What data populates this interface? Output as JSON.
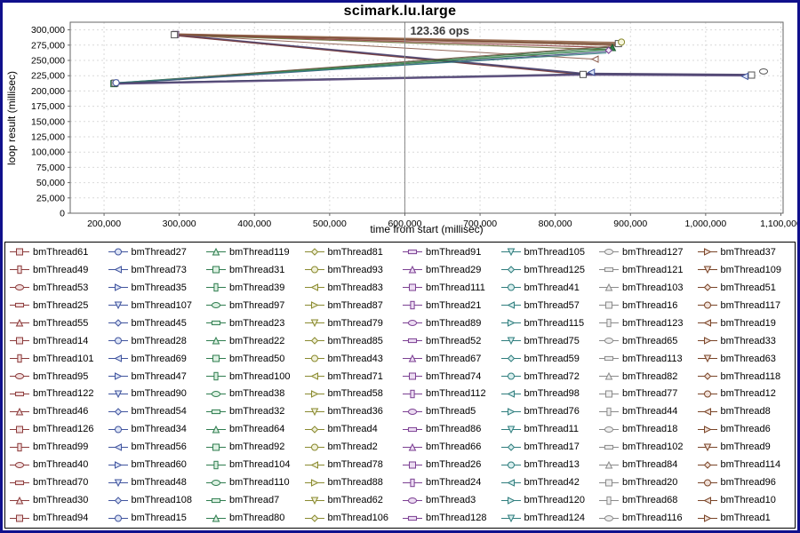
{
  "page": {
    "frame_color": "#10108c",
    "legend_border_color": "#000000",
    "background": "#ffffff"
  },
  "chart_data": {
    "type": "line",
    "title": "scimark.lu.large",
    "xlabel": "time from start (millisec)",
    "ylabel": "loop result (millisec)",
    "xlim": [
      155000,
      1103000
    ],
    "ylim": [
      0,
      312500
    ],
    "x_ticks": [
      200000,
      300000,
      400000,
      500000,
      600000,
      700000,
      800000,
      900000,
      1000000,
      1100000
    ],
    "x_tick_labels": [
      "200,000",
      "300,000",
      "400,000",
      "500,000",
      "600,000",
      "700,000",
      "800,000",
      "900,000",
      "1,000,000",
      "1,100,000"
    ],
    "y_ticks": [
      0,
      25000,
      50000,
      75000,
      100000,
      125000,
      150000,
      175000,
      200000,
      225000,
      250000,
      275000,
      300000
    ],
    "y_tick_labels": [
      "0",
      "25,000",
      "50,000",
      "75,000",
      "100,000",
      "125,000",
      "150,000",
      "175,000",
      "200,000",
      "225,000",
      "250,000",
      "275,000",
      "300,000"
    ],
    "grid": true,
    "legend_position": "bottom",
    "annotation": {
      "text": "123.36 ops",
      "x_value": 600000
    },
    "note": "128 overlapping series (bmThread1..bmThread128). Lines bundle between start clusters and end clusters; values below are representative cluster coordinates read from the plot.",
    "clusters": {
      "start_low": {
        "x": 213000,
        "y": 212000
      },
      "start_high": {
        "x": 295000,
        "y": 292000
      },
      "end_high": {
        "x": 878000,
        "y": 271000
      },
      "mid_low": {
        "x": 838000,
        "y": 227000
      },
      "end_far": {
        "x": 1062000,
        "y": 226000
      },
      "outlier": {
        "x": 853000,
        "y": 252000
      }
    },
    "series": [
      {
        "name": "bundle start_high to end_high",
        "color": "#7a5230",
        "w": 1.4,
        "points": [
          [
            295000,
            293000
          ],
          [
            884000,
            277500
          ]
        ]
      },
      {
        "name": "bundle start_high to end_high",
        "color": "#8a5a3a",
        "w": 1.2,
        "points": [
          [
            295000,
            292500
          ],
          [
            880000,
            274500
          ]
        ]
      },
      {
        "name": "bundle start_high to end_high",
        "color": "#8b3a3a",
        "w": 1.2,
        "points": [
          [
            294000,
            292000
          ],
          [
            876000,
            271000
          ]
        ]
      },
      {
        "name": "bundle start_high to end_high",
        "color": "#9a6a50",
        "w": 1.2,
        "points": [
          [
            296000,
            293500
          ],
          [
            887000,
            279500
          ]
        ]
      },
      {
        "name": "bundle start_high to end_high",
        "color": "#6b6b35",
        "w": 1.2,
        "points": [
          [
            295000,
            291500
          ],
          [
            872000,
            267500
          ]
        ]
      },
      {
        "name": "bundle start_high to end_high",
        "color": "#7a4a3a",
        "w": 1.0,
        "points": [
          [
            294500,
            292800
          ],
          [
            882000,
            276000
          ]
        ]
      },
      {
        "name": "bundle start_high to mid_low to end_far",
        "color": "#50406e",
        "w": 1.4,
        "points": [
          [
            295000,
            292000
          ],
          [
            836000,
            229000
          ],
          [
            1060000,
            227000
          ]
        ]
      },
      {
        "name": "bundle start_high to mid_low to end_far",
        "color": "#33406e",
        "w": 1.2,
        "points": [
          [
            294000,
            291000
          ],
          [
            838000,
            227500
          ],
          [
            1062000,
            226000
          ]
        ]
      },
      {
        "name": "bundle start_high to mid_low",
        "color": "#7b3b3b",
        "w": 1.2,
        "points": [
          [
            295500,
            290500
          ],
          [
            837000,
            226500
          ]
        ]
      },
      {
        "name": "outlier line",
        "color": "#8a5a4a",
        "w": 1.0,
        "points": [
          [
            296000,
            292000
          ],
          [
            853000,
            252000
          ]
        ]
      },
      {
        "name": "bundle start_low to end_high",
        "color": "#2f7d46",
        "w": 1.6,
        "points": [
          [
            213000,
            212000
          ],
          [
            874000,
            268000
          ]
        ]
      },
      {
        "name": "bundle start_low to end_high",
        "color": "#2f6b3a",
        "w": 1.2,
        "points": [
          [
            214000,
            213000
          ],
          [
            878000,
            271500
          ]
        ]
      },
      {
        "name": "bundle start_low to end_high",
        "color": "#3a4a7a",
        "w": 1.2,
        "points": [
          [
            213000,
            211500
          ],
          [
            870000,
            264500
          ]
        ]
      },
      {
        "name": "bundle start_low to end_high",
        "color": "#7a5a4a",
        "w": 1.0,
        "points": [
          [
            214000,
            212500
          ],
          [
            882000,
            274000
          ]
        ]
      },
      {
        "name": "bundle start_low to end_high",
        "color": "#2f7d7d",
        "w": 1.0,
        "points": [
          [
            213500,
            213500
          ],
          [
            868000,
            262000
          ]
        ]
      },
      {
        "name": "bundle start_low to mid_low to end_far",
        "color": "#5a4a7a",
        "w": 2.2,
        "points": [
          [
            214000,
            212000
          ],
          [
            838000,
            227000
          ],
          [
            1062000,
            225500
          ]
        ]
      },
      {
        "name": "bundle start_low to mid_low to end_far",
        "color": "#6a5a8a",
        "w": 1.4,
        "points": [
          [
            213000,
            211000
          ],
          [
            836000,
            226000
          ],
          [
            1060000,
            224500
          ]
        ]
      },
      {
        "name": "bundle start_low to mid_low to end_far",
        "color": "#46426a",
        "w": 1.2,
        "points": [
          [
            214500,
            212800
          ],
          [
            840000,
            228000
          ],
          [
            1064000,
            226500
          ]
        ]
      }
    ],
    "end_markers": [
      {
        "shape": "square",
        "x": 295000,
        "y": 292500,
        "color": "#6a4a7a",
        "fill": "#f6eef8"
      },
      {
        "shape": "square",
        "x": 293500,
        "y": 292000,
        "color": "#555555",
        "fill": "#ffffff"
      },
      {
        "shape": "square",
        "x": 213000,
        "y": 212000,
        "color": "#2f7d4f",
        "fill": "#eaf6ec"
      },
      {
        "shape": "square",
        "x": 214500,
        "y": 212800,
        "color": "#444444",
        "fill": "#ffffff"
      },
      {
        "shape": "circle",
        "x": 216000,
        "y": 213500,
        "color": "#40549e",
        "fill": "#ffffff"
      },
      {
        "shape": "square",
        "x": 884000,
        "y": 277500,
        "color": "#555555",
        "fill": "#ffffff"
      },
      {
        "shape": "triangle-up",
        "x": 876000,
        "y": 271000,
        "color": "#1e5c32",
        "fill": "#2f7d46"
      },
      {
        "shape": "circle",
        "x": 888000,
        "y": 280000,
        "color": "#8a8a30",
        "fill": "#f4f4dc"
      },
      {
        "shape": "diamond",
        "x": 871000,
        "y": 266500,
        "color": "#7b3f92",
        "fill": "#f2e6f6"
      },
      {
        "shape": "square",
        "x": 837000,
        "y": 227000,
        "color": "#555555",
        "fill": "#ffffff"
      },
      {
        "shape": "triangle-left",
        "x": 848000,
        "y": 230500,
        "color": "#40549e",
        "fill": "#dde4f5"
      },
      {
        "shape": "square",
        "x": 1061000,
        "y": 226000,
        "color": "#555555",
        "fill": "#ffffff"
      },
      {
        "shape": "triangle-left",
        "x": 1052000,
        "y": 224000,
        "color": "#40549e",
        "fill": "#dde4f5"
      },
      {
        "shape": "ellipse",
        "x": 1077000,
        "y": 232000,
        "color": "#555555",
        "fill": "#ffffff"
      },
      {
        "shape": "triangle-left",
        "x": 853000,
        "y": 252000,
        "color": "#8a5a4a",
        "fill": "#ffffff"
      }
    ],
    "style": {
      "grid_color": "#d9d9d9",
      "plot_border_color": "#666666",
      "crosshair_color": "#888888",
      "annotation_color": "#3a3a3a",
      "tick_label_color": "#000000"
    }
  },
  "legend": {
    "marker_shapes": [
      "square",
      "circle",
      "triangle-up",
      "diamond",
      "rect-h",
      "triangle-down",
      "ellipse",
      "triangle-right",
      "rect-v",
      "triangle-left"
    ],
    "palette": [
      "#8b3a3a",
      "#40549e",
      "#2f7d4f",
      "#8a8a30",
      "#7b3f92",
      "#2f7d7d",
      "#8a8a8a",
      "#7a4528"
    ],
    "marker_fills": [
      "#f2dede",
      "#dde4f5",
      "#ddf0e2",
      "#f0f0d8",
      "#ecdcf2",
      "#d8eeee",
      "#eeeeee",
      "#f0e0d8"
    ],
    "items": [
      "bmThread61",
      "bmThread27",
      "bmThread119",
      "bmThread81",
      "bmThread91",
      "bmThread105",
      "bmThread127",
      "bmThread37",
      "bmThread49",
      "bmThread73",
      "bmThread31",
      "bmThread93",
      "bmThread29",
      "bmThread125",
      "bmThread121",
      "bmThread109",
      "bmThread53",
      "bmThread35",
      "bmThread39",
      "bmThread83",
      "bmThread111",
      "bmThread41",
      "bmThread103",
      "bmThread51",
      "bmThread25",
      "bmThread107",
      "bmThread97",
      "bmThread87",
      "bmThread21",
      "bmThread57",
      "bmThread16",
      "bmThread117",
      "bmThread55",
      "bmThread45",
      "bmThread23",
      "bmThread79",
      "bmThread89",
      "bmThread115",
      "bmThread123",
      "bmThread19",
      "bmThread14",
      "bmThread28",
      "bmThread22",
      "bmThread85",
      "bmThread52",
      "bmThread75",
      "bmThread65",
      "bmThread33",
      "bmThread101",
      "bmThread69",
      "bmThread50",
      "bmThread43",
      "bmThread67",
      "bmThread59",
      "bmThread113",
      "bmThread63",
      "bmThread95",
      "bmThread47",
      "bmThread100",
      "bmThread71",
      "bmThread74",
      "bmThread72",
      "bmThread82",
      "bmThread118",
      "bmThread122",
      "bmThread90",
      "bmThread38",
      "bmThread58",
      "bmThread112",
      "bmThread98",
      "bmThread77",
      "bmThread12",
      "bmThread46",
      "bmThread54",
      "bmThread32",
      "bmThread36",
      "bmThread5",
      "bmThread76",
      "bmThread44",
      "bmThread8",
      "bmThread126",
      "bmThread34",
      "bmThread64",
      "bmThread4",
      "bmThread86",
      "bmThread11",
      "bmThread18",
      "bmThread6",
      "bmThread99",
      "bmThread56",
      "bmThread92",
      "bmThread2",
      "bmThread66",
      "bmThread17",
      "bmThread102",
      "bmThread9",
      "bmThread40",
      "bmThread60",
      "bmThread104",
      "bmThread78",
      "bmThread26",
      "bmThread13",
      "bmThread84",
      "bmThread114",
      "bmThread70",
      "bmThread48",
      "bmThread110",
      "bmThread88",
      "bmThread24",
      "bmThread42",
      "bmThread20",
      "bmThread96",
      "bmThread30",
      "bmThread108",
      "bmThread7",
      "bmThread62",
      "bmThread3",
      "bmThread120",
      "bmThread68",
      "bmThread10",
      "bmThread94",
      "bmThread15",
      "bmThread80",
      "bmThread106",
      "bmThread128",
      "bmThread124",
      "bmThread116",
      "bmThread1"
    ]
  }
}
